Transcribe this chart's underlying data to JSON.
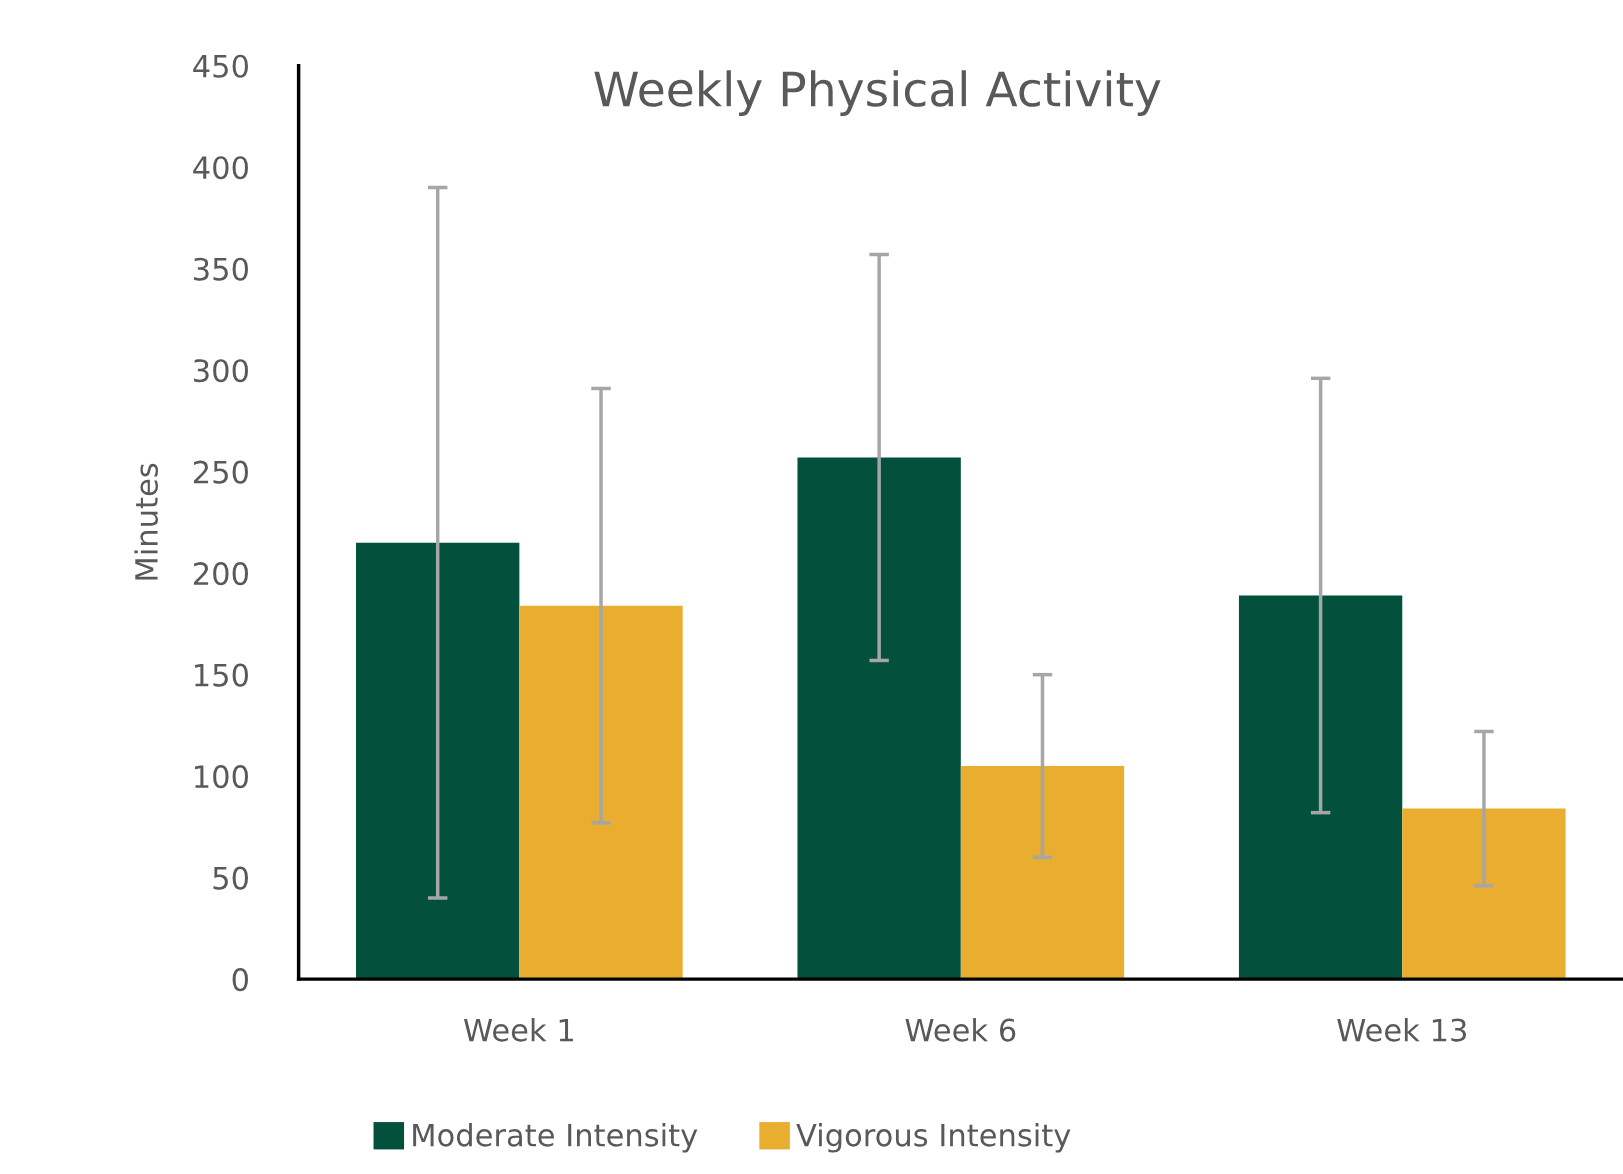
{
  "chart_data": {
    "type": "bar",
    "title": "Weekly Physical Activity",
    "ylabel": "Minutes",
    "categories": [
      "Week 1",
      "Week 6",
      "Week 13"
    ],
    "series": [
      {
        "name": "Moderate Intensity",
        "color": "#03513c",
        "values": [
          215,
          257,
          189
        ],
        "errors": [
          175,
          100,
          107
        ]
      },
      {
        "name": "Vigorous Intensity",
        "color": "#e9ae2f",
        "values": [
          184,
          105,
          84
        ],
        "errors": [
          107,
          45,
          38
        ]
      }
    ],
    "ylim": [
      0,
      450
    ],
    "yticks": [
      0,
      50,
      100,
      150,
      200,
      250,
      300,
      350,
      400,
      450
    ],
    "grid": false,
    "legend": "bottom"
  }
}
